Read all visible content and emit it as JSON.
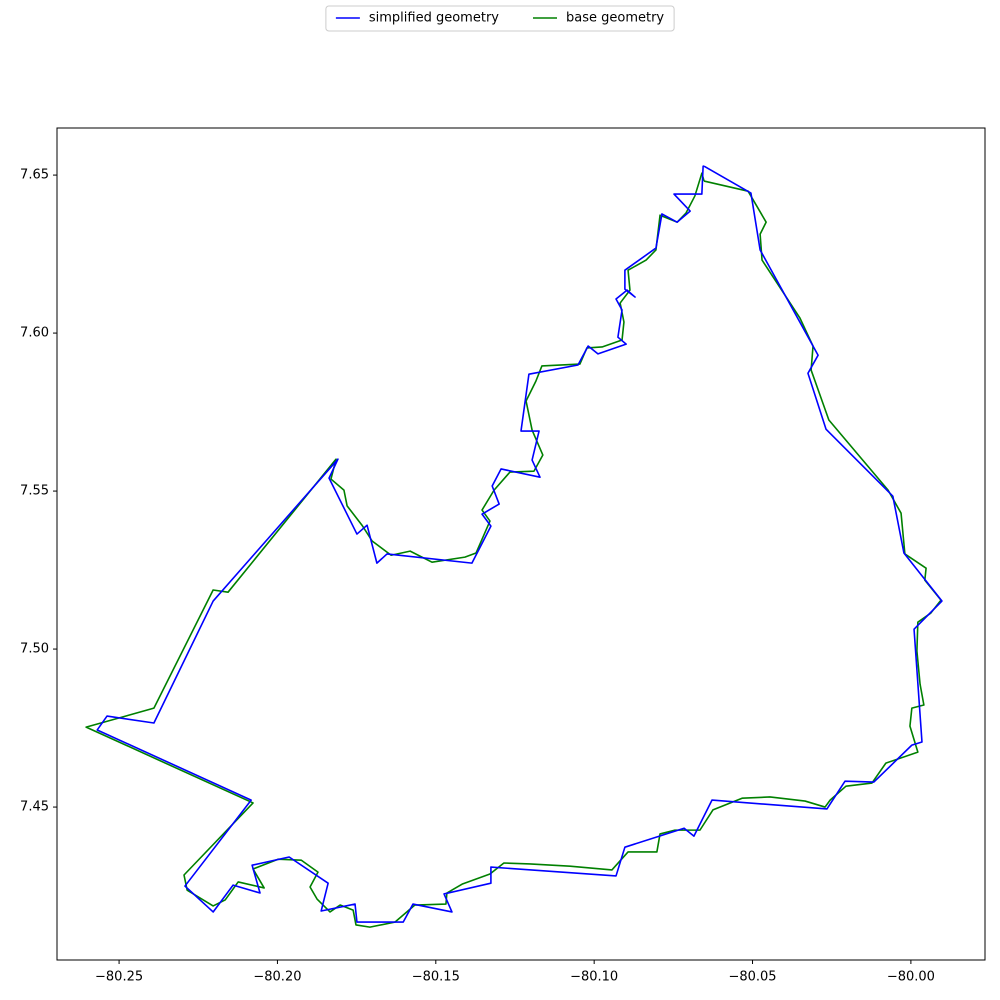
{
  "chart_data": {
    "type": "line",
    "series": [
      {
        "name": "simplified geometry",
        "color": "#0000ff",
        "x": [
          -80.0653,
          -80.0505,
          -80.0476,
          -80.0293,
          -80.0325,
          -80.0268,
          -80.0057,
          -80.0022,
          -79.9902,
          -79.999,
          -79.9965,
          -79.9997,
          -80.0117,
          -80.0208,
          -80.0265,
          -80.0628,
          -80.0685,
          -80.0716,
          -80.0903,
          -80.0931,
          -80.1326,
          -80.1326,
          -80.1474,
          -80.1449,
          -80.1572,
          -80.1603,
          -80.1749,
          -80.1755,
          -80.1862,
          -80.184,
          -80.1963,
          -80.208,
          -80.2055,
          -80.214,
          -80.2203,
          -80.2292,
          -80.2083,
          -80.2569,
          -80.2538,
          -80.239,
          -80.2203,
          -80.1809,
          -80.1837,
          -80.1749,
          -80.1717,
          -80.1686,
          -80.1654,
          -80.1386,
          -80.1326,
          -80.1354,
          -80.13,
          -80.1322,
          -80.1294,
          -80.1171,
          -80.1196,
          -80.1174,
          -80.1231,
          -80.1206,
          -80.1051,
          -80.1019,
          -80.0988,
          -80.0899,
          -80.0925,
          -80.0912,
          -80.0931,
          -80.0896,
          -80.0871,
          -80.0903,
          -80.0903,
          -80.0805,
          -80.0786,
          -80.0738,
          -80.0697,
          -80.0748,
          -80.066,
          -80.0656,
          -80.0653
        ],
        "values": [
          7.6528,
          7.6443,
          7.6263,
          7.593,
          7.5873,
          7.5696,
          7.5484,
          7.5304,
          7.5152,
          7.5063,
          7.4706,
          7.4696,
          7.4579,
          7.4582,
          7.4494,
          7.4522,
          7.4408,
          7.4433,
          7.4373,
          7.4282,
          7.431,
          7.4259,
          7.4225,
          7.4168,
          7.4193,
          7.4136,
          7.4136,
          7.4193,
          7.4171,
          7.4259,
          7.4342,
          7.4316,
          7.4228,
          7.4253,
          7.4168,
          7.425,
          7.4522,
          7.4744,
          7.4788,
          7.4766,
          7.5152,
          7.5601,
          7.5541,
          7.5364,
          7.5392,
          7.5272,
          7.5301,
          7.5272,
          7.5389,
          7.5427,
          7.5459,
          7.5516,
          7.557,
          7.5544,
          7.5598,
          7.569,
          7.569,
          7.587,
          7.5899,
          7.5959,
          7.5934,
          7.5965,
          7.5987,
          7.6073,
          7.6108,
          7.6136,
          7.6114,
          7.6139,
          7.6199,
          7.6269,
          7.6377,
          7.6351,
          7.6386,
          7.644,
          7.644,
          7.6528,
          7.6528
        ]
      },
      {
        "name": "base geometry",
        "color": "#008000",
        "x": [
          -80.0653,
          -80.0514,
          -80.0457,
          -80.0476,
          -80.047,
          -80.035,
          -80.0309,
          -80.0315,
          -80.0259,
          -80.0072,
          -80.0031,
          -80.0019,
          -79.9952,
          -79.9956,
          -79.9905,
          -79.9937,
          -79.9978,
          -79.9981,
          -79.9971,
          -79.9959,
          -79.9997,
          -80.0003,
          -79.9978,
          -80.0079,
          -80.0123,
          -80.0205,
          -80.0255,
          -80.0271,
          -80.0334,
          -80.0445,
          -80.0533,
          -80.0625,
          -80.0666,
          -80.0745,
          -80.0792,
          -80.0802,
          -80.0893,
          -80.0944,
          -80.1076,
          -80.1203,
          -80.1285,
          -80.1329,
          -80.1417,
          -80.1465,
          -80.1468,
          -80.1566,
          -80.1629,
          -80.1708,
          -80.1752,
          -80.1761,
          -80.1802,
          -80.1834,
          -80.1875,
          -80.1897,
          -80.1872,
          -80.1925,
          -80.1998,
          -80.2077,
          -80.2042,
          -80.2124,
          -80.2165,
          -80.2203,
          -80.2285,
          -80.2295,
          -80.2077,
          -80.2604,
          -80.239,
          -80.2203,
          -80.2156,
          -80.1815,
          -80.1831,
          -80.179,
          -80.178,
          -80.1733,
          -80.1701,
          -80.1641,
          -80.1581,
          -80.1512,
          -80.1408,
          -80.1373,
          -80.1329,
          -80.1354,
          -80.1316,
          -80.1266,
          -80.119,
          -80.1162,
          -80.1196,
          -80.1215,
          -80.1184,
          -80.1165,
          -80.1045,
          -80.1023,
          -80.0975,
          -80.0912,
          -80.0906,
          -80.0918,
          -80.0887,
          -80.0893,
          -80.0836,
          -80.0805,
          -80.0792,
          -80.0738,
          -80.071,
          -80.0682,
          -80.066,
          -80.0653
        ],
        "values": [
          7.6481,
          7.6449,
          7.6351,
          7.6313,
          7.6231,
          7.6047,
          7.5959,
          7.5883,
          7.5725,
          7.5503,
          7.543,
          7.5301,
          7.5256,
          7.5218,
          7.5155,
          7.5114,
          7.5085,
          7.4994,
          7.4889,
          7.4823,
          7.4813,
          7.4756,
          7.4674,
          7.4639,
          7.4576,
          7.4566,
          7.4522,
          7.45,
          7.4519,
          7.4532,
          7.4528,
          7.4491,
          7.4427,
          7.4427,
          7.4415,
          7.4358,
          7.4358,
          7.4301,
          7.4313,
          7.432,
          7.4323,
          7.4288,
          7.4256,
          7.4228,
          7.4193,
          7.419,
          7.4136,
          7.412,
          7.4127,
          7.4174,
          7.419,
          7.4168,
          7.4209,
          7.4247,
          7.4294,
          7.4332,
          7.4335,
          7.4304,
          7.4244,
          7.4263,
          7.4206,
          7.4187,
          7.4237,
          7.4285,
          7.4513,
          7.4753,
          7.4813,
          7.5187,
          7.518,
          7.5601,
          7.5538,
          7.5503,
          7.5453,
          7.5392,
          7.5342,
          7.5297,
          7.531,
          7.5275,
          7.5291,
          7.5304,
          7.5405,
          7.544,
          7.5503,
          7.556,
          7.5563,
          7.5614,
          7.5693,
          7.5785,
          7.5848,
          7.5896,
          7.5902,
          7.5953,
          7.5956,
          7.5978,
          7.6035,
          7.6095,
          7.6136,
          7.6199,
          7.6231,
          7.6263,
          7.6373,
          7.6351,
          7.638,
          7.6434,
          7.6506,
          7.6481
        ]
      }
    ],
    "xlim": [
      -80.2696,
      -79.9766
    ],
    "ylim": [
      7.4016,
      7.6649
    ],
    "xticks": [
      {
        "value": -80.25,
        "label": "−80.25"
      },
      {
        "value": -80.2,
        "label": "−80.20"
      },
      {
        "value": -80.15,
        "label": "−80.15"
      },
      {
        "value": -80.1,
        "label": "−80.10"
      },
      {
        "value": -80.05,
        "label": "−80.05"
      },
      {
        "value": -80,
        "label": "−80.00"
      }
    ],
    "yticks": [
      7.45,
      {
        "value": 7.5,
        "label": "7.50"
      },
      7.55,
      {
        "value": 7.6,
        "label": "7.60"
      },
      7.65
    ],
    "legend": "upper center"
  }
}
